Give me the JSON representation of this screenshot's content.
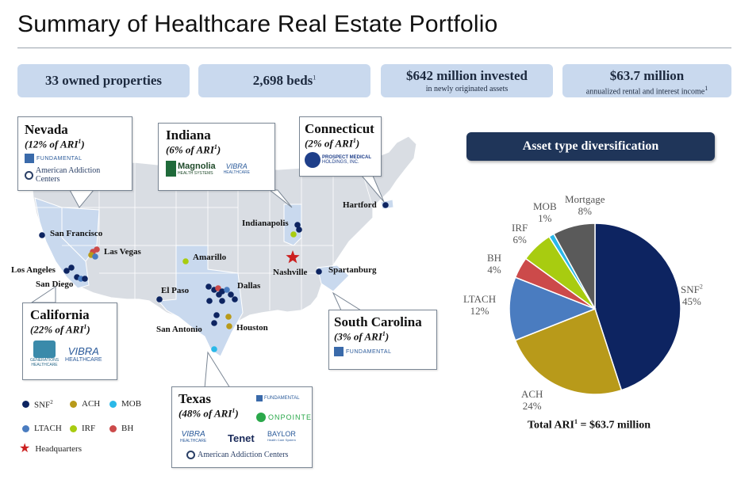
{
  "title": "Summary of Healthcare Real Estate Portfolio",
  "stats": {
    "properties": "33 owned properties",
    "beds": "2,698 beds",
    "beds_sup": "1",
    "invested": "$642 million invested",
    "invested_sub": "in newly originated assets",
    "rental": "$63.7 million",
    "rental_sub": "annualized rental and interest income",
    "rental_sup": "1"
  },
  "callouts": {
    "nevada": {
      "name": "Nevada",
      "ari": "(12% of ARI",
      "sup": "1",
      "close": ")",
      "logo1": "FUNDAMENTAL",
      "logo2": "American Addiction Centers"
    },
    "indiana": {
      "name": "Indiana",
      "ari": "(6% of ARI",
      "sup": "1",
      "close": ")",
      "logo1a": "Magnolia",
      "logo1b": "HEALTH SYSTEMS",
      "logo2a": "VIBRA",
      "logo2b": "HEALTHCARE"
    },
    "connecticut": {
      "name": "Connecticut",
      "ari": "(2% of ARI",
      "sup": "1",
      "close": ")",
      "logo1a": "PROSPECT MEDICAL",
      "logo1b": "HOLDINGS, INC."
    },
    "california": {
      "name": "California",
      "ari": "(22% of ARI",
      "sup": "1",
      "close": ")",
      "logo1a": "GENERATIONS",
      "logo1b": "HEALTHCARE",
      "logo2a": "VIBRA",
      "logo2b": "HEALTHCARE"
    },
    "texas": {
      "name": "Texas",
      "ari": "(48% of ARI",
      "sup": "1",
      "close": ")",
      "logo1": "FUNDAMENTAL",
      "logo2": "ONPOINTE",
      "logo3a": "VIBRA",
      "logo3b": "HEALTHCARE",
      "logo4": "Tenet",
      "logo5a": "BAYLOR",
      "logo5b": "Health Care System",
      "logo6": "American Addiction Centers"
    },
    "south_carolina": {
      "name": "South Carolina",
      "ari": "(3% of ARI",
      "sup": "1",
      "close": ")",
      "logo1": "FUNDAMENTAL"
    }
  },
  "cities": {
    "san_francisco": "San Francisco",
    "las_vegas": "Las Vegas",
    "los_angeles": "Los Angeles",
    "san_diego": "San Diego",
    "amarillo": "Amarillo",
    "el_paso": "El Paso",
    "dallas": "Dallas",
    "san_antonio": "San Antonio",
    "houston": "Houston",
    "indianapolis": "Indianapolis",
    "nashville": "Nashville",
    "spartanburg": "Spartanburg",
    "hartford": "Hartford"
  },
  "legend": {
    "snf": "SNF",
    "snf_sup": "2",
    "ach": "ACH",
    "mob": "MOB",
    "ltach": "LTACH",
    "irf": "IRF",
    "bh": "BH",
    "hq": "Headquarters"
  },
  "colors": {
    "snf": "#0d2461",
    "ach": "#b89a1a",
    "mob": "#2ab8e8",
    "ltach": "#4a7cc0",
    "irf": "#a8cc10",
    "bh": "#cc4a4a",
    "mortgage": "#5a5a5a",
    "hq": "#cc2020"
  },
  "asset_title": "Asset type diversification",
  "chart_data": {
    "type": "pie",
    "title": "Asset type diversification",
    "slices": [
      {
        "label": "SNF",
        "sup": "2",
        "value": 45,
        "pct": "45%",
        "color": "#0d2461"
      },
      {
        "label": "ACH",
        "sup": "",
        "value": 24,
        "pct": "24%",
        "color": "#b89a1a"
      },
      {
        "label": "LTACH",
        "sup": "",
        "value": 12,
        "pct": "12%",
        "color": "#4a7cc0"
      },
      {
        "label": "BH",
        "sup": "",
        "value": 4,
        "pct": "4%",
        "color": "#cc4a4a"
      },
      {
        "label": "IRF",
        "sup": "",
        "value": 6,
        "pct": "6%",
        "color": "#a8cc10"
      },
      {
        "label": "MOB",
        "sup": "",
        "value": 1,
        "pct": "1%",
        "color": "#2ab8e8"
      },
      {
        "label": "Mortgage",
        "sup": "",
        "value": 8,
        "pct": "8%",
        "color": "#5a5a5a"
      }
    ],
    "total_prefix": "Total ARI",
    "total_sup": "1",
    "total_suffix": " = $63.7 million"
  }
}
